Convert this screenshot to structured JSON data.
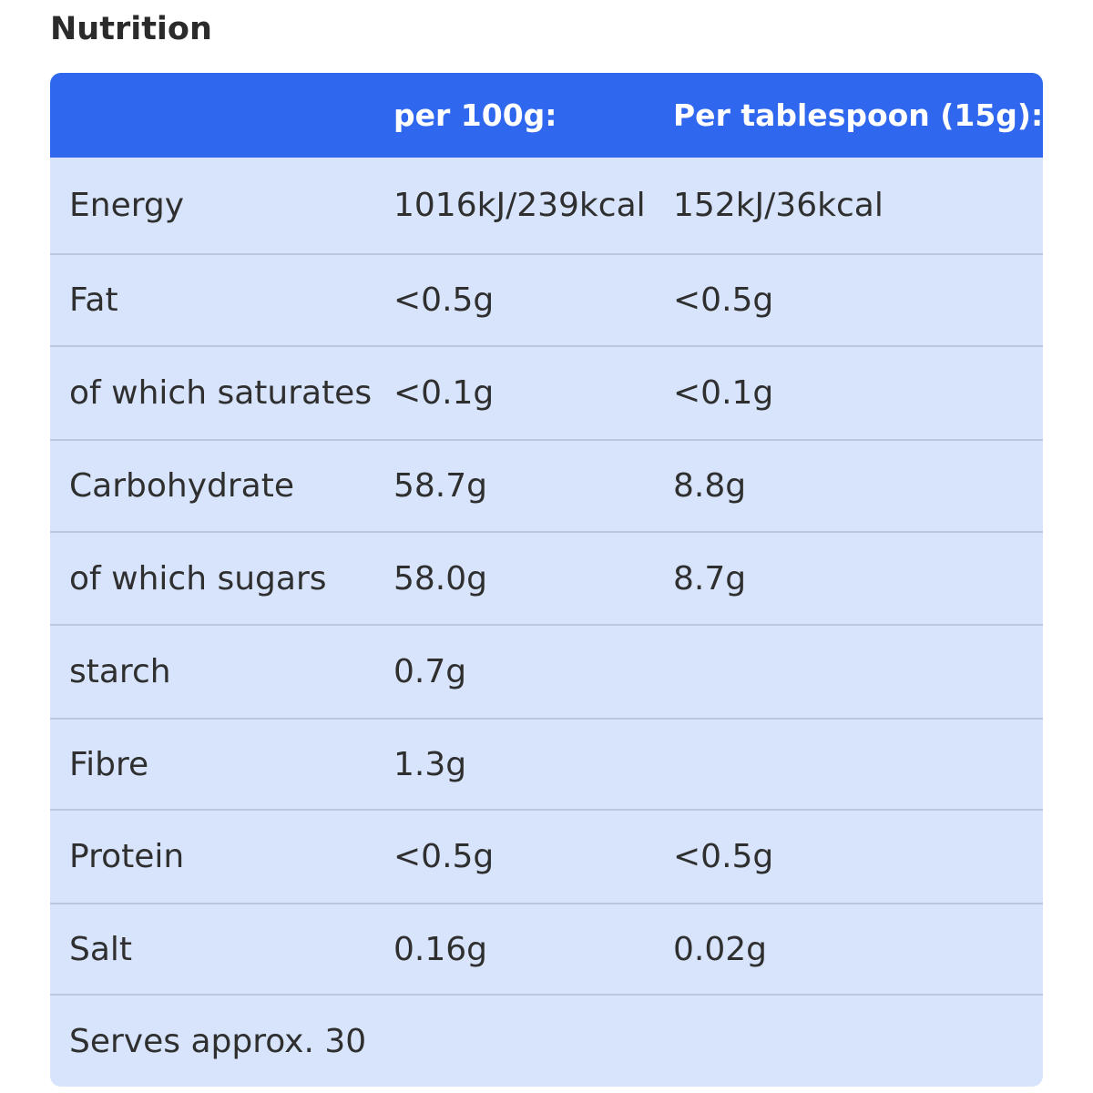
{
  "title": "Nutrition",
  "table": {
    "headers": [
      "",
      "per 100g:",
      "Per tablespoon (15g):"
    ],
    "rows": [
      [
        "Energy",
        "1016kJ/239kcal",
        "152kJ/36kcal"
      ],
      [
        "Fat",
        "<0.5g",
        "<0.5g"
      ],
      [
        "of which saturates",
        "<0.1g",
        "<0.1g"
      ],
      [
        "Carbohydrate",
        "58.7g",
        "8.8g"
      ],
      [
        "of which sugars",
        "58.0g",
        "8.7g"
      ],
      [
        "starch",
        "0.7g",
        ""
      ],
      [
        "Fibre",
        "1.3g",
        ""
      ],
      [
        "Protein",
        "<0.5g",
        "<0.5g"
      ],
      [
        "Salt",
        "0.16g",
        "0.02g"
      ],
      [
        "Serves approx. 30",
        "",
        ""
      ]
    ]
  },
  "colors": {
    "header_bg": "#2f67ee",
    "body_bg": "#d7e4fb",
    "row_divider": "#b9c7df"
  }
}
